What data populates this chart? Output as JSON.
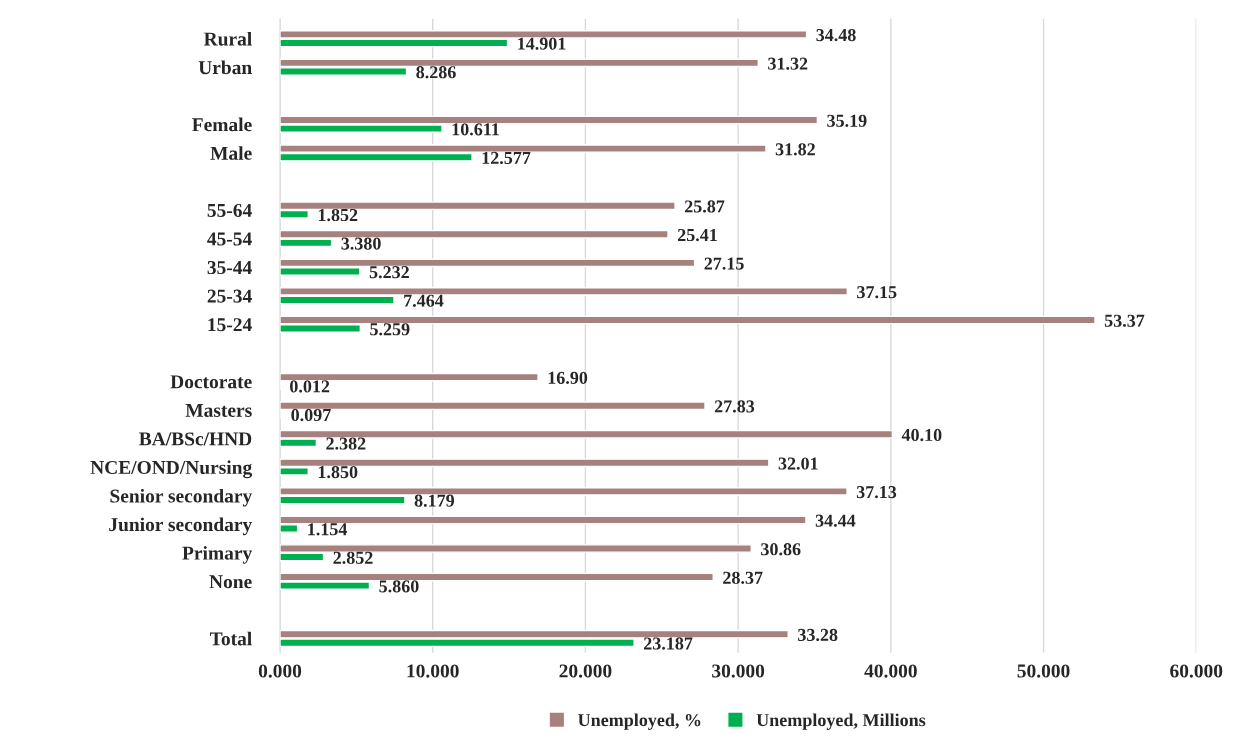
{
  "chart_data": {
    "type": "bar",
    "orientation": "horizontal",
    "categories": [
      "Rural",
      "Urban",
      null,
      "Female",
      "Male",
      null,
      "55-64",
      "45-54",
      "35-44",
      "25-34",
      "15-24",
      null,
      "Doctorate",
      "Masters",
      "BA/BSc/HND",
      "NCE/OND/Nursing",
      "Senior secondary",
      "Junior secondary",
      "Primary",
      "None",
      null,
      "Total"
    ],
    "series": [
      {
        "name": "Unemployed, %",
        "color": "#a6817e",
        "values": [
          34.48,
          31.32,
          null,
          35.19,
          31.82,
          null,
          25.87,
          25.41,
          27.15,
          37.15,
          53.37,
          null,
          16.9,
          27.83,
          40.1,
          32.01,
          37.13,
          34.44,
          30.86,
          28.37,
          null,
          33.28
        ],
        "value_labels": [
          "34.48",
          "31.32",
          null,
          "35.19",
          "31.82",
          null,
          "25.87",
          "25.41",
          "27.15",
          "37.15",
          "53.37",
          null,
          "16.90",
          "27.83",
          "40.10",
          "32.01",
          "37.13",
          "34.44",
          "30.86",
          "28.37",
          null,
          "33.28"
        ]
      },
      {
        "name": "Unemployed, Millions",
        "color": "#00b050",
        "values": [
          14.901,
          8.286,
          null,
          10.611,
          12.577,
          null,
          1.852,
          3.38,
          5.232,
          7.464,
          5.259,
          null,
          0.012,
          0.097,
          2.382,
          1.85,
          8.179,
          1.154,
          2.852,
          5.86,
          null,
          23.187
        ],
        "value_labels": [
          "14.901",
          "8.286",
          null,
          "10.611",
          "12.577",
          null,
          "1.852",
          "3.380",
          "5.232",
          "7.464",
          "5.259",
          null,
          "0.012",
          "0.097",
          "2.382",
          "1.850",
          "8.179",
          "1.154",
          "2.852",
          "5.860",
          null,
          "23.187"
        ]
      }
    ],
    "xlim": [
      0,
      60
    ],
    "xticks": [
      {
        "value": 0,
        "label": "0.000"
      },
      {
        "value": 10,
        "label": "10.000"
      },
      {
        "value": 20,
        "label": "20.000"
      },
      {
        "value": 30,
        "label": "30.000"
      },
      {
        "value": 40,
        "label": "40.000"
      },
      {
        "value": 50,
        "label": "50.000"
      },
      {
        "value": 60,
        "label": "60.000"
      }
    ],
    "grid": "x",
    "legend": "bottom"
  }
}
